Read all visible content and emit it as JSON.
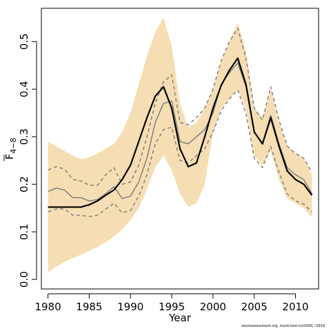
{
  "chart_data": {
    "type": "line",
    "xlabel": "Year",
    "ylabel_main": "F",
    "ylabel_sub": "4−8",
    "xlim": [
      1979.2,
      2012.8
    ],
    "ylim": [
      -0.02,
      0.57
    ],
    "x_ticks": [
      1980,
      1985,
      1990,
      1995,
      2000,
      2005,
      2010
    ],
    "y_ticks": [
      0.0,
      0.1,
      0.2,
      0.3,
      0.4,
      0.5
    ],
    "y_tick_labels": [
      "0.0",
      "0.1",
      "0.2",
      "0.3",
      "0.4",
      "0.5"
    ],
    "grid": false,
    "x": [
      1980,
      1981,
      1982,
      1983,
      1984,
      1985,
      1986,
      1987,
      1988,
      1989,
      1990,
      1991,
      1992,
      1993,
      1994,
      1995,
      1996,
      1997,
      1998,
      1999,
      2000,
      2001,
      2002,
      2003,
      2004,
      2005,
      2006,
      2007,
      2008,
      2009,
      2010,
      2011,
      2012
    ],
    "band": {
      "color": "#F5DEB3",
      "lower": [
        0.015,
        0.027,
        0.037,
        0.045,
        0.052,
        0.06,
        0.068,
        0.078,
        0.09,
        0.105,
        0.125,
        0.15,
        0.19,
        0.235,
        0.26,
        0.23,
        0.18,
        0.153,
        0.16,
        0.2,
        0.31,
        0.36,
        0.38,
        0.4,
        0.36,
        0.26,
        0.24,
        0.27,
        0.21,
        0.17,
        0.16,
        0.15,
        0.13
      ],
      "upper": [
        0.29,
        0.28,
        0.27,
        0.26,
        0.253,
        0.257,
        0.265,
        0.275,
        0.285,
        0.31,
        0.35,
        0.41,
        0.47,
        0.52,
        0.55,
        0.49,
        0.37,
        0.32,
        0.33,
        0.36,
        0.4,
        0.46,
        0.5,
        0.54,
        0.48,
        0.36,
        0.34,
        0.4,
        0.33,
        0.28,
        0.265,
        0.255,
        0.22
      ]
    },
    "series": [
      {
        "role": "estimate",
        "color": "#000000",
        "values": [
          0.152,
          0.152,
          0.152,
          0.152,
          0.152,
          0.157,
          0.165,
          0.177,
          0.188,
          0.21,
          0.24,
          0.29,
          0.34,
          0.385,
          0.405,
          0.36,
          0.275,
          0.237,
          0.245,
          0.3,
          0.36,
          0.408,
          0.44,
          0.465,
          0.41,
          0.31,
          0.285,
          0.34,
          0.28,
          0.228,
          0.21,
          0.2,
          0.177
        ]
      },
      {
        "role": "reference-median",
        "color": "#777777",
        "values": [
          0.185,
          0.192,
          0.188,
          0.172,
          0.172,
          0.165,
          0.168,
          0.18,
          0.195,
          0.17,
          0.175,
          0.205,
          0.255,
          0.33,
          0.37,
          0.375,
          0.29,
          0.285,
          0.3,
          0.315,
          0.35,
          0.41,
          0.435,
          0.455,
          0.405,
          0.31,
          0.285,
          0.345,
          0.285,
          0.235,
          0.22,
          0.21,
          0.18
        ]
      },
      {
        "role": "reference-upper",
        "color": "#777777",
        "dashed": true,
        "values": [
          0.23,
          0.237,
          0.232,
          0.21,
          0.207,
          0.198,
          0.198,
          0.22,
          0.235,
          0.2,
          0.205,
          0.24,
          0.3,
          0.37,
          0.415,
          0.43,
          0.33,
          0.325,
          0.34,
          0.36,
          0.4,
          0.46,
          0.5,
          0.528,
          0.465,
          0.36,
          0.335,
          0.405,
          0.335,
          0.28,
          0.265,
          0.255,
          0.225
        ]
      },
      {
        "role": "reference-lower",
        "color": "#777777",
        "dashed": true,
        "values": [
          0.142,
          0.148,
          0.148,
          0.135,
          0.135,
          0.132,
          0.135,
          0.148,
          0.16,
          0.14,
          0.145,
          0.175,
          0.22,
          0.285,
          0.315,
          0.32,
          0.25,
          0.245,
          0.26,
          0.275,
          0.31,
          0.355,
          0.38,
          0.398,
          0.35,
          0.255,
          0.235,
          0.28,
          0.225,
          0.18,
          0.165,
          0.158,
          0.142
        ]
      }
    ]
  },
  "credit": "stockassessment.org, mack-test-cut2000, r2919"
}
